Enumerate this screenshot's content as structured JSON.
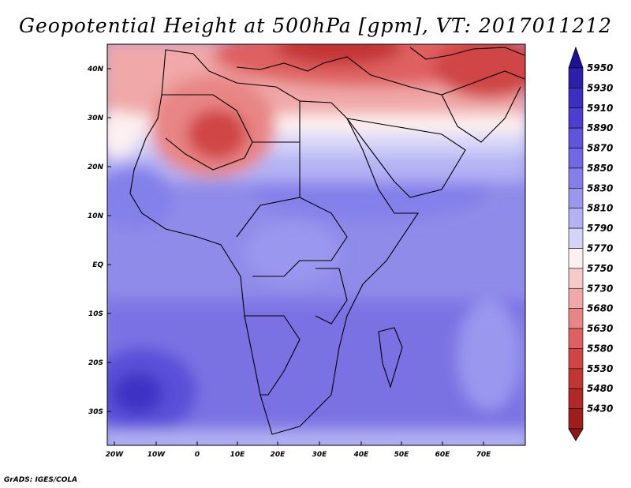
{
  "title": "Geopotential Height at 500hPa [gpm], VT: 2017011212",
  "credit": "GrADS: IGES/COLA",
  "lat_labels": [
    "40N",
    "30N",
    "20N",
    "10N",
    "EQ",
    "10S",
    "20S",
    "30S"
  ],
  "lon_labels": [
    "20W",
    "10W",
    "0",
    "10E",
    "20E",
    "30E",
    "40E",
    "50E",
    "60E",
    "70E"
  ],
  "colorbar": {
    "levels": [
      "5950",
      "5930",
      "5910",
      "5890",
      "5870",
      "5850",
      "5830",
      "5810",
      "5790",
      "5770",
      "5750",
      "5730",
      "5680",
      "5630",
      "5580",
      "5530",
      "5480",
      "5430"
    ],
    "colors": [
      "#2d1fa8",
      "#3a2fbf",
      "#4b3ed0",
      "#5e55db",
      "#7168e3",
      "#8480ea",
      "#9a97ef",
      "#b4b2f3",
      "#d4d3f8",
      "#fdf0f0",
      "#f7caca",
      "#f0a8a8",
      "#e88585",
      "#de6060",
      "#d04545",
      "#c23535",
      "#b02828",
      "#a01d1d"
    ],
    "top_color": "#1c129a",
    "bottom_color": "#8e1515"
  },
  "map_extent": {
    "lon": [
      -23,
      80
    ],
    "lat": [
      -37,
      45
    ]
  }
}
